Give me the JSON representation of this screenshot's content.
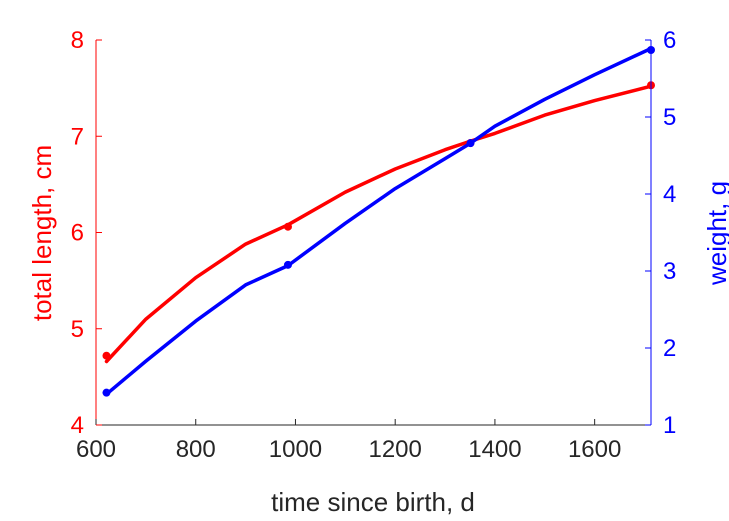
{
  "chart_data": {
    "type": "line",
    "xlabel": "time since birth, d",
    "ylabel_left": "total length, cm",
    "ylabel_right": "weight, g",
    "xlim": [
      600,
      1713
    ],
    "ylim_left": [
      4,
      8
    ],
    "ylim_right": [
      1,
      6
    ],
    "xticks": [
      600,
      800,
      1000,
      1200,
      1400,
      1600
    ],
    "yticks_left": [
      4,
      5,
      6,
      7,
      8
    ],
    "yticks_right": [
      1,
      2,
      3,
      4,
      5,
      6
    ],
    "grid": false,
    "colors": {
      "length": "#ff0000",
      "weight": "#0000ff",
      "xaxis": "#262626"
    },
    "series": [
      {
        "axis": "left",
        "color": "#ff0000",
        "points": {
          "x": [
            621,
            985,
            1351,
            1713
          ],
          "y": [
            4.72,
            6.06,
            6.93,
            7.53
          ]
        },
        "curve": {
          "x": [
            621,
            700,
            800,
            900,
            985,
            1100,
            1200,
            1300,
            1351,
            1400,
            1500,
            1600,
            1713
          ],
          "y": [
            4.66,
            5.1,
            5.53,
            5.88,
            6.08,
            6.42,
            6.66,
            6.86,
            6.95,
            7.03,
            7.22,
            7.37,
            7.52
          ]
        }
      },
      {
        "axis": "right",
        "color": "#0000ff",
        "points": {
          "x": [
            621,
            985,
            1351,
            1713
          ],
          "y": [
            1.42,
            3.08,
            4.66,
            5.87
          ]
        },
        "curve": {
          "x": [
            621,
            700,
            800,
            900,
            985,
            1100,
            1200,
            1300,
            1351,
            1400,
            1500,
            1600,
            1713
          ],
          "y": [
            1.4,
            1.83,
            2.35,
            2.82,
            3.07,
            3.62,
            4.07,
            4.46,
            4.66,
            4.88,
            5.23,
            5.55,
            5.89
          ]
        }
      }
    ]
  }
}
